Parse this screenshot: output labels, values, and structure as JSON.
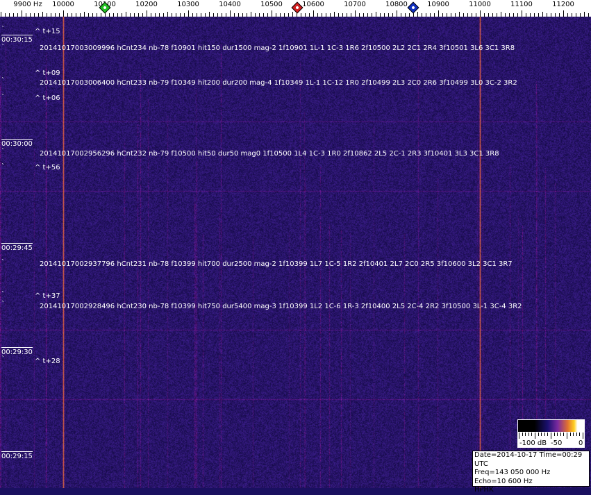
{
  "axis": {
    "unit_label": "9900 Hz",
    "ticks": [
      "10000",
      "10100",
      "10200",
      "10300",
      "10400",
      "10500",
      "10600",
      "10700",
      "10800",
      "10900",
      "11000",
      "11100",
      "11200"
    ],
    "markers": [
      {
        "freq_hz": 10100,
        "color": "#22c022"
      },
      {
        "freq_hz": 10562,
        "color": "#d02020"
      },
      {
        "freq_hz": 10840,
        "color": "#1030c0"
      }
    ]
  },
  "waterfall": {
    "carriers_hz": [
      10000,
      11000
    ],
    "background_color": "#1e1470",
    "carrier_color": "#e0703a",
    "time_labels": [
      "00:30:15",
      "00:30:00",
      "00:29:45",
      "00:29:30",
      "00:29:15"
    ]
  },
  "annotations": [
    {
      "kind": "offset",
      "text": "^ t+15"
    },
    {
      "kind": "detection",
      "text": "20141017003009996 hCnt234 nb-78 f10901 hit150 dur1500 mag-2 1f10901 1L-1 1C-3 1R6 2f10500 2L2 2C1 2R4 3f10501 3L6 3C1 3R8"
    },
    {
      "kind": "offset",
      "text": "^ t+09"
    },
    {
      "kind": "detection",
      "text": "20141017003006400 hCnt233 nb-79 f10349 hit200 dur200 mag-4 1f10349 1L-1 1C-12 1R0 2f10499 2L3 2C0 2R6 3f10499 3L0 3C-2 3R2"
    },
    {
      "kind": "offset",
      "text": "^ t+06"
    },
    {
      "kind": "detection",
      "text": "20141017002956296 hCnt232 nb-79 f10500 hit50 dur50 mag0 1f10500 1L4 1C-3 1R0 2f10862 2L5 2C-1 2R3 3f10401 3L3 3C1 3R8"
    },
    {
      "kind": "offset",
      "text": "^ t+56"
    },
    {
      "kind": "detection",
      "text": "20141017002937796 hCnt231 nb-78 f10399 hit700 dur2500 mag-2 1f10399 1L7 1C-5 1R2 2f10401 2L7 2C0 2R5 3f10600 3L2 3C1 3R7"
    },
    {
      "kind": "offset",
      "text": "^ t+37"
    },
    {
      "kind": "detection",
      "text": "20141017002928496 hCnt230 nb-78 f10399 hit750 dur5400 mag-3 1f10399 1L2 1C-6 1R-3 2f10400 2L5 2C-4 2R2 3f10500 3L-1 3C-4 3R2"
    },
    {
      "kind": "offset",
      "text": "^ t+28"
    }
  ],
  "tick_glyph": "`",
  "colorbar": {
    "labels": [
      "-100 dB",
      "-50",
      "0"
    ]
  },
  "info": {
    "date_time": "Date=2014-10-17 Time=00:29 UTC",
    "freq": "Freq=143 050 000 Hz",
    "echo": "Echo=10 600 Hz",
    "station": "HPHK"
  }
}
